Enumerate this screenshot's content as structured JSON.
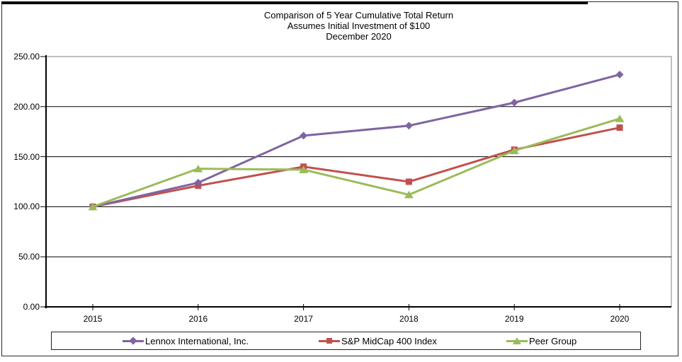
{
  "title": {
    "line1": "Comparison of 5 Year Cumulative Total Return",
    "line2": "Assumes Initial Investment of $100",
    "line3": "December 2020"
  },
  "chart_data": {
    "type": "line",
    "x": [
      "2015",
      "2016",
      "2017",
      "2018",
      "2019",
      "2020"
    ],
    "series": [
      {
        "name": "Lennox International, Inc.",
        "marker": "diamond",
        "color": "#8064A2",
        "values": [
          100,
          124,
          171,
          181,
          204,
          232
        ]
      },
      {
        "name": "S&P MidCap 400 Index",
        "marker": "square",
        "color": "#C0504D",
        "values": [
          100,
          121,
          140,
          125,
          157,
          179
        ]
      },
      {
        "name": "Peer Group",
        "marker": "triangle",
        "color": "#9BBB59",
        "values": [
          100,
          138,
          137,
          112,
          156,
          188
        ]
      }
    ],
    "ylim": [
      0,
      250
    ],
    "yticks": [
      "250.00",
      "200.00",
      "150.00",
      "100.00",
      "50.00",
      "0.00"
    ],
    "ytick_values": [
      250,
      200,
      150,
      100,
      50,
      0
    ],
    "grid": true,
    "gridline_color": "#000000",
    "plot_border_color": "#808080",
    "axis_color": "#000000",
    "legend_position": "bottom"
  }
}
